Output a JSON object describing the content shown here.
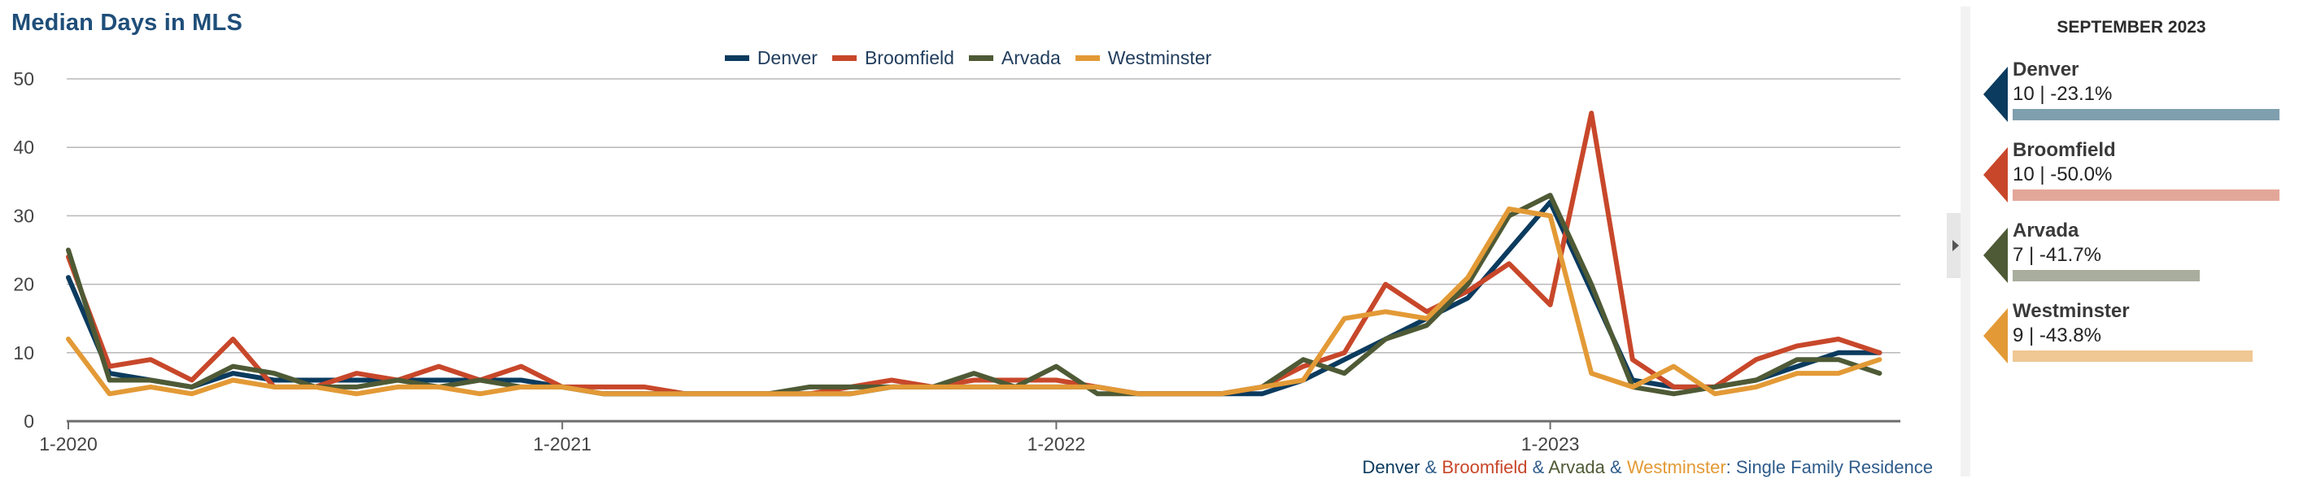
{
  "title": "Median Days in MLS",
  "footnote": {
    "parts": [
      {
        "text": "Denver",
        "color": "#0b3b5e"
      },
      {
        "text": " & ",
        "color": "#2f5c8a"
      },
      {
        "text": "Broomfield",
        "color": "#c8472a"
      },
      {
        "text": " & ",
        "color": "#2f5c8a"
      },
      {
        "text": "Arvada",
        "color": "#4e5a35"
      },
      {
        "text": " & ",
        "color": "#2f5c8a"
      },
      {
        "text": "Westminster",
        "color": "#e39a36"
      },
      {
        "text": ": Single Family Residence",
        "color": "#2f5c8a"
      }
    ]
  },
  "side_panel": {
    "heading": "SEPTEMBER 2023",
    "cards": [
      {
        "name": "Denver",
        "stat": "10 | -23.1%",
        "value": 10,
        "arrow_color": "#0b3b5e",
        "bar_color": "#7f9fae"
      },
      {
        "name": "Broomfield",
        "stat": "10 | -50.0%",
        "value": 10,
        "arrow_color": "#c8472a",
        "bar_color": "#e3a799"
      },
      {
        "name": "Arvada",
        "stat": "7 | -41.7%",
        "value": 7,
        "arrow_color": "#4e5a35",
        "bar_color": "#a9ad9d"
      },
      {
        "name": "Westminster",
        "stat": "9 | -43.8%",
        "value": 9,
        "arrow_color": "#e39a36",
        "bar_color": "#efc893"
      }
    ],
    "bar_max": 10
  },
  "chart_data": {
    "type": "line",
    "title": "Median Days in MLS",
    "xlabel": "",
    "ylabel": "",
    "ylim": [
      0,
      50
    ],
    "yticks": [
      0,
      10,
      20,
      30,
      40,
      50
    ],
    "xticks": [
      {
        "label": "1-2020",
        "index": 0
      },
      {
        "label": "1-2021",
        "index": 12
      },
      {
        "label": "1-2022",
        "index": 24
      },
      {
        "label": "1-2023",
        "index": 36
      }
    ],
    "grid": true,
    "legend_position": "top-center",
    "x": [
      "1-2020",
      "2-2020",
      "3-2020",
      "4-2020",
      "5-2020",
      "6-2020",
      "7-2020",
      "8-2020",
      "9-2020",
      "10-2020",
      "11-2020",
      "12-2020",
      "1-2021",
      "2-2021",
      "3-2021",
      "4-2021",
      "5-2021",
      "6-2021",
      "7-2021",
      "8-2021",
      "9-2021",
      "10-2021",
      "11-2021",
      "12-2021",
      "1-2022",
      "2-2022",
      "3-2022",
      "4-2022",
      "5-2022",
      "6-2022",
      "7-2022",
      "8-2022",
      "9-2022",
      "10-2022",
      "11-2022",
      "12-2022",
      "1-2023",
      "2-2023",
      "3-2023",
      "4-2023",
      "5-2023",
      "6-2023",
      "7-2023",
      "8-2023",
      "9-2023"
    ],
    "series": [
      {
        "name": "Denver",
        "color": "#0b3b5e",
        "values": [
          21,
          7,
          6,
          5,
          7,
          6,
          6,
          6,
          6,
          6,
          6,
          6,
          5,
          4,
          4,
          4,
          4,
          4,
          4,
          4,
          5,
          5,
          5,
          5,
          5,
          5,
          4,
          4,
          4,
          4,
          6,
          9,
          12,
          15,
          18,
          25,
          32,
          19,
          6,
          5,
          5,
          6,
          8,
          10,
          10
        ]
      },
      {
        "name": "Broomfield",
        "color": "#c8472a",
        "values": [
          24,
          8,
          9,
          6,
          12,
          5,
          5,
          7,
          6,
          8,
          6,
          8,
          5,
          5,
          5,
          4,
          4,
          4,
          4,
          5,
          6,
          5,
          6,
          6,
          6,
          5,
          4,
          4,
          4,
          5,
          8,
          10,
          20,
          16,
          19,
          23,
          17,
          45,
          9,
          5,
          5,
          9,
          11,
          12,
          10
        ]
      },
      {
        "name": "Arvada",
        "color": "#4e5a35",
        "values": [
          25,
          6,
          6,
          5,
          8,
          7,
          5,
          5,
          6,
          5,
          6,
          5,
          5,
          4,
          4,
          4,
          4,
          4,
          5,
          5,
          5,
          5,
          7,
          5,
          8,
          4,
          4,
          4,
          4,
          5,
          9,
          7,
          12,
          14,
          20,
          30,
          33,
          20,
          5,
          4,
          5,
          6,
          9,
          9,
          7
        ]
      },
      {
        "name": "Westminster",
        "color": "#e39a36",
        "values": [
          12,
          4,
          5,
          4,
          6,
          5,
          5,
          4,
          5,
          5,
          4,
          5,
          5,
          4,
          4,
          4,
          4,
          4,
          4,
          4,
          5,
          5,
          5,
          5,
          5,
          5,
          4,
          4,
          4,
          5,
          6,
          15,
          16,
          15,
          21,
          31,
          30,
          7,
          5,
          8,
          4,
          5,
          7,
          7,
          9
        ]
      }
    ]
  }
}
